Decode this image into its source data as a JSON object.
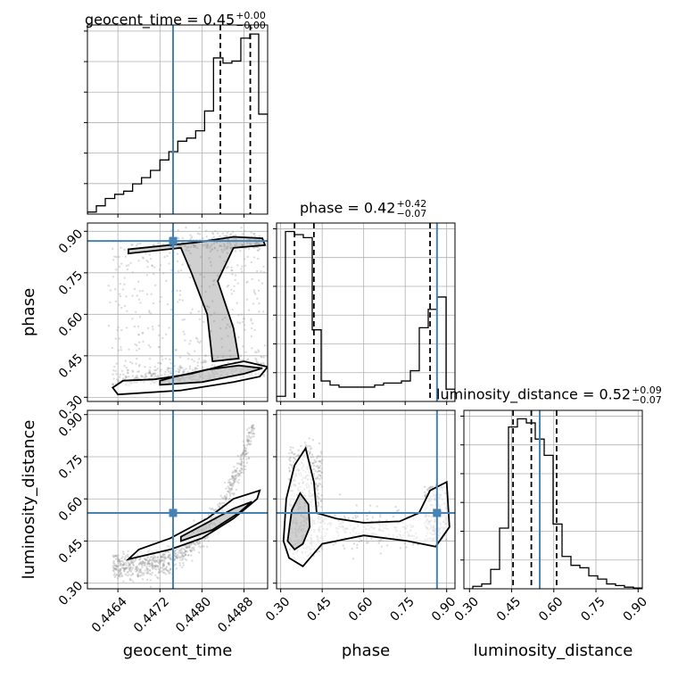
{
  "colors": {
    "truth": "#4682b4",
    "hist": "#000000",
    "grid": "#b0b0b0",
    "points": "#9a9a9a"
  },
  "chart_data": {
    "type": "corner",
    "parameters": [
      "geocent_time",
      "phase",
      "luminosity_distance"
    ],
    "truths": {
      "geocent_time": 0.44745,
      "phase": 0.865,
      "luminosity_distance": 0.55
    },
    "panel_titles": [
      {
        "param": "geocent_time",
        "text": "geocent_time = 0.45",
        "sup": "+0.00",
        "sub": "−0.00"
      },
      {
        "param": "phase",
        "text": "phase = 0.42",
        "sup": "+0.42",
        "sub": "−0.07"
      },
      {
        "param": "luminosity_distance",
        "text": "luminosity_distance = 0.52",
        "sup": "+0.09",
        "sub": "−0.07"
      }
    ],
    "axes": {
      "geocent_time": {
        "label": "geocent_time",
        "range": [
          0.44582,
          0.44925
        ],
        "ticks": [
          0.4464,
          0.4472,
          0.448,
          0.4488
        ],
        "tick_labels": [
          "0.4464",
          "0.4472",
          "0.4480",
          "0.4488"
        ]
      },
      "phase": {
        "label": "phase",
        "range": [
          0.285,
          0.93
        ],
        "ticks": [
          0.3,
          0.45,
          0.6,
          0.75,
          0.9
        ],
        "tick_labels": [
          "0.30",
          "0.45",
          "0.60",
          "0.75",
          "0.90"
        ]
      },
      "luminosity_distance": {
        "label": "luminosity_distance",
        "range": [
          0.28,
          0.915
        ],
        "ticks": [
          0.3,
          0.45,
          0.6,
          0.75,
          0.9
        ],
        "tick_labels": [
          "0.30",
          "0.45",
          "0.60",
          "0.75",
          "0.90"
        ]
      }
    },
    "histograms": {
      "geocent_time": {
        "bins": [
          0.44582,
          0.44599,
          0.44616,
          0.44634,
          0.44651,
          0.44668,
          0.44685,
          0.44702,
          0.4472,
          0.44737,
          0.44754,
          0.44771,
          0.44788,
          0.44805,
          0.44822,
          0.4484,
          0.44857,
          0.44874,
          0.44891,
          0.44908,
          0.44925
        ],
        "counts": [
          2,
          8,
          15,
          19,
          22,
          29,
          35,
          42,
          52,
          60,
          70,
          73,
          80,
          99,
          150,
          145,
          147,
          169,
          173,
          96
        ]
      },
      "phase": {
        "bins": [
          0.285,
          0.3173,
          0.3495,
          0.3818,
          0.414,
          0.4463,
          0.4785,
          0.5108,
          0.543,
          0.5753,
          0.6075,
          0.6398,
          0.672,
          0.7043,
          0.7365,
          0.7688,
          0.801,
          0.8333,
          0.8655,
          0.8978,
          0.93
        ],
        "counts": [
          5,
          166,
          163,
          160,
          70,
          20,
          16,
          14,
          14,
          14,
          14,
          16,
          18,
          18,
          20,
          30,
          72,
          90,
          102,
          12
        ]
      },
      "luminosity_distance": {
        "bins": [
          0.28,
          0.3118,
          0.3435,
          0.3753,
          0.407,
          0.4388,
          0.4705,
          0.5023,
          0.534,
          0.5658,
          0.5975,
          0.6293,
          0.661,
          0.6928,
          0.7245,
          0.7563,
          0.788,
          0.8198,
          0.8515,
          0.8833,
          0.915
        ],
        "counts": [
          0,
          3,
          6,
          24,
          75,
          200,
          210,
          205,
          185,
          165,
          80,
          40,
          29,
          26,
          16,
          12,
          6,
          4,
          2,
          1
        ]
      }
    },
    "quantiles": {
      "geocent_time": [
        0.44745,
        0.44835,
        0.44892
      ],
      "phase": [
        0.35,
        0.42,
        0.84
      ],
      "luminosity_distance": [
        0.455,
        0.52,
        0.61
      ]
    },
    "grid": true
  }
}
